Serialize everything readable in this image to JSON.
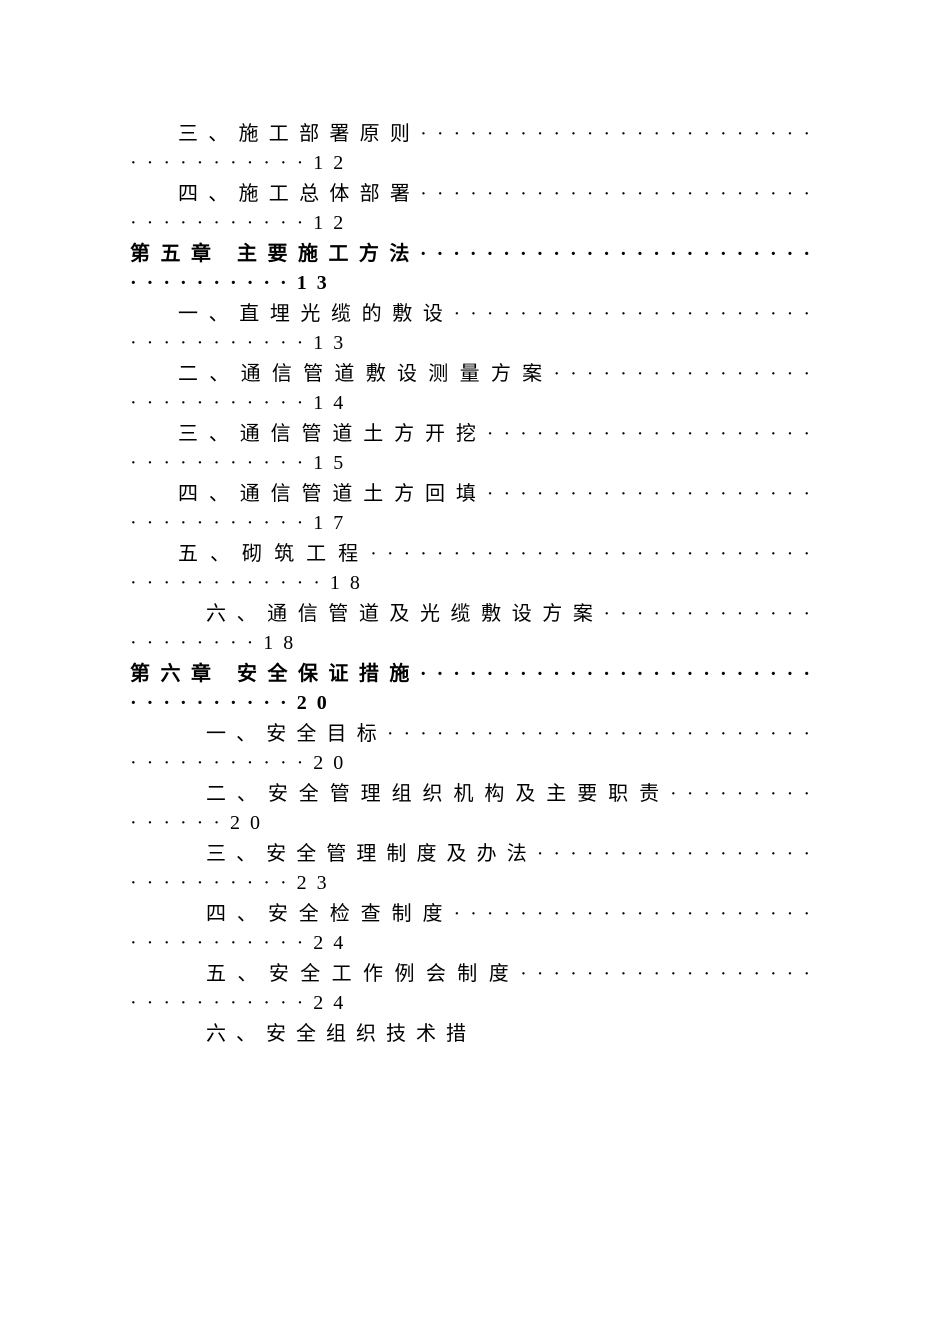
{
  "entries": [
    {
      "text": "三、施工部署原则···································12",
      "bold": false,
      "indent": 1
    },
    {
      "text": "四、施工总体部署···································12",
      "bold": false,
      "indent": 1
    },
    {
      "text": "第五章  主要施工方法··································13",
      "bold": true,
      "indent": 0
    },
    {
      "text": "一、直埋光缆的敷设·································13",
      "bold": false,
      "indent": 1
    },
    {
      "text": "二、通信管道敷设测量方案···························14",
      "bold": false,
      "indent": 1
    },
    {
      "text": "三、通信管道土方开挖·······························15",
      "bold": false,
      "indent": 1
    },
    {
      "text": "四、通信管道土方回填·······························17",
      "bold": false,
      "indent": 1
    },
    {
      "text": "五、砌筑工程·······································18",
      "bold": false,
      "indent": 1
    },
    {
      "text": "六、通信管道及光缆敷设方案·····················18",
      "bold": false,
      "indent": 2
    },
    {
      "text": "第六章  安全保证措施··································20",
      "bold": true,
      "indent": 0
    },
    {
      "text": "一、安全目标·····································20",
      "bold": false,
      "indent": 2
    },
    {
      "text": "二、安全管理组织机构及主要职责···············20",
      "bold": false,
      "indent": 2
    },
    {
      "text": "三、安全管理制度及办法···························23",
      "bold": false,
      "indent": 2
    },
    {
      "text": "四、安全检查制度·································24",
      "bold": false,
      "indent": 2
    },
    {
      "text": "五、安全工作例会制度·····························24",
      "bold": false,
      "indent": 2
    },
    {
      "text": "六、安全组织技术措",
      "bold": false,
      "indent": 2
    }
  ]
}
